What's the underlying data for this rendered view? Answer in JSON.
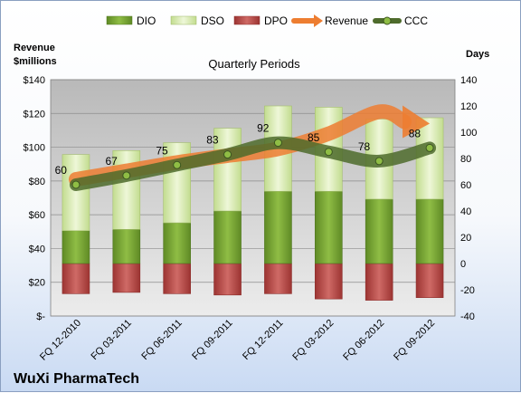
{
  "chart_data": {
    "type": "bar",
    "subtitle": "Quarterly Periods",
    "company": "WuXi PharmaTech",
    "left_axis_title_line1": "Revenue",
    "left_axis_title_line2": "$millions",
    "right_axis_title": "Days",
    "categories": [
      "FQ 12-2010",
      "FQ 03-2011",
      "FQ 06-2011",
      "FQ 09-2011",
      "FQ 12-2011",
      "FQ 03-2012",
      "FQ 06-2012",
      "FQ 09-2012"
    ],
    "left_ylim": [
      0,
      140
    ],
    "left_ticks": [
      "$-",
      "$20",
      "$40",
      "$60",
      "$80",
      "$100",
      "$120",
      "$140"
    ],
    "right_ylim": [
      -40,
      140
    ],
    "right_ticks": [
      "-40",
      "-20",
      "0",
      "20",
      "40",
      "60",
      "80",
      "100",
      "120",
      "140"
    ],
    "series": [
      {
        "name": "DIO",
        "axis": "days",
        "values": [
          25,
          26,
          31,
          40,
          55,
          55,
          49,
          49
        ],
        "color": "#77a033"
      },
      {
        "name": "DSO",
        "axis": "days",
        "values": [
          58,
          60,
          61,
          63,
          65,
          64,
          61,
          62
        ],
        "color": "#d8ebb0"
      },
      {
        "name": "DPO",
        "axis": "days",
        "values": [
          23,
          22,
          23,
          24,
          23,
          27,
          28,
          26
        ],
        "color": "#c0504d"
      },
      {
        "name": "Revenue",
        "axis": "revenue",
        "values": [
          81,
          86,
          91,
          95,
          99,
          108,
          121,
          114
        ],
        "color": "#ed7d31"
      },
      {
        "name": "CCC",
        "axis": "days",
        "values": [
          60,
          67,
          75,
          83,
          92,
          85,
          78,
          88
        ],
        "color": "#4e6b2c"
      }
    ],
    "ccc_labels": [
      "60",
      "67",
      "75",
      "83",
      "92",
      "85",
      "78",
      "88"
    ],
    "legend": [
      "DIO",
      "DSO",
      "DPO",
      "Revenue",
      "CCC"
    ],
    "legend_position": "top",
    "grid": true
  }
}
